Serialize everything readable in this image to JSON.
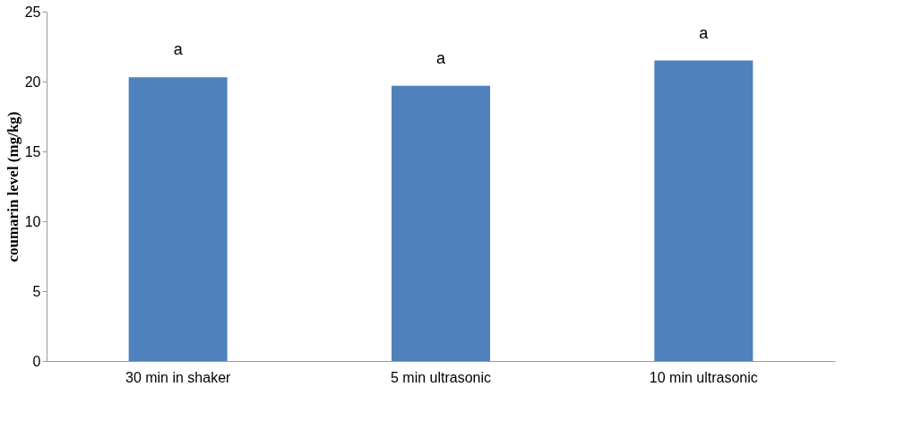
{
  "chart_data": {
    "type": "bar",
    "ylabel": "coumarin level  (mg/kg)",
    "categories": [
      "30 min in shaker",
      "5 min ultrasonic",
      "10 min ultrasonic"
    ],
    "values": [
      20.3,
      19.7,
      21.5
    ],
    "color": "#4f81bd",
    "ylim": [
      0,
      25
    ],
    "yticks": [
      0,
      5,
      10,
      15,
      20,
      25
    ],
    "grid": false,
    "annotations": [
      {
        "text": "a",
        "x": "30 min in shaker",
        "y": 20.3
      },
      {
        "text": "a",
        "x": "5 min ultrasonic",
        "y": 19.7
      },
      {
        "text": "a",
        "x": "10 min ultrasonic",
        "y": 21.5
      }
    ]
  }
}
